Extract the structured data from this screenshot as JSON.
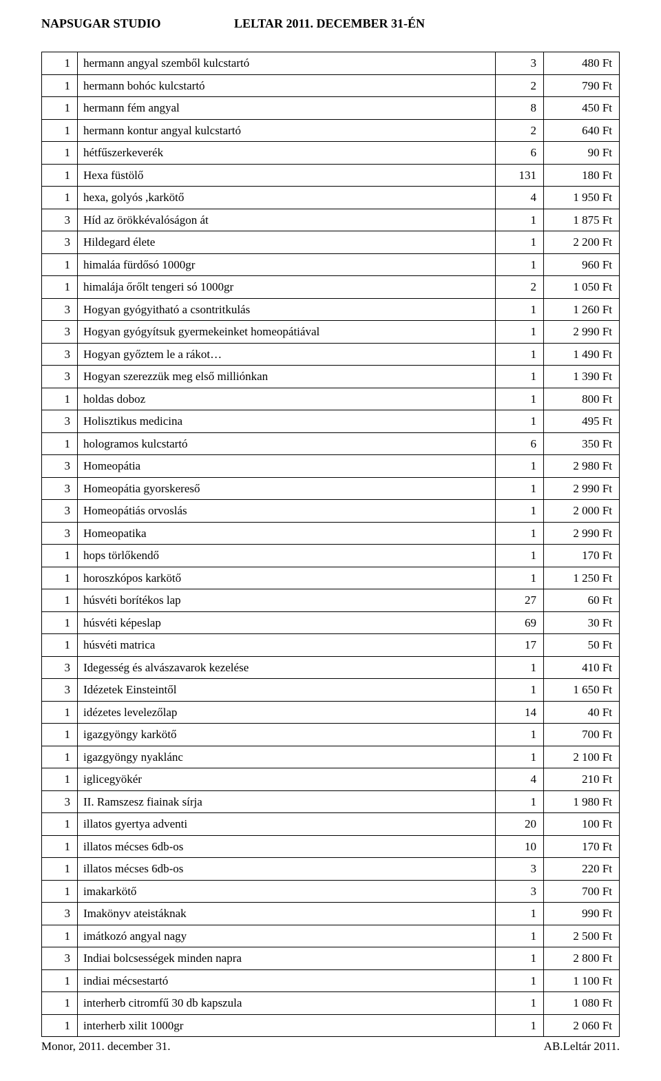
{
  "header": {
    "left": "NAPSUGAR STUDIO",
    "right": "LELTAR 2011. DECEMBER 31-ÉN"
  },
  "rows": [
    {
      "a": "1",
      "b": "hermann angyal szemből kulcstartó",
      "c": "3",
      "d": "480 Ft"
    },
    {
      "a": "1",
      "b": "hermann bohóc kulcstartó",
      "c": "2",
      "d": "790 Ft"
    },
    {
      "a": "1",
      "b": "hermann fém angyal",
      "c": "8",
      "d": "450 Ft"
    },
    {
      "a": "1",
      "b": "hermann kontur angyal kulcstartó",
      "c": "2",
      "d": "640 Ft"
    },
    {
      "a": "1",
      "b": "hétfűszerkeverék",
      "c": "6",
      "d": "90 Ft"
    },
    {
      "a": "1",
      "b": "Hexa füstölő",
      "c": "131",
      "d": "180 Ft"
    },
    {
      "a": "1",
      "b": "hexa, golyós ,karkötő",
      "c": "4",
      "d": "1 950 Ft"
    },
    {
      "a": "3",
      "b": "Híd az örökkévalóságon át",
      "c": "1",
      "d": "1 875 Ft"
    },
    {
      "a": "3",
      "b": "Hildegard élete",
      "c": "1",
      "d": "2 200 Ft"
    },
    {
      "a": "1",
      "b": "himaláa fürdősó 1000gr",
      "c": "1",
      "d": "960 Ft"
    },
    {
      "a": "1",
      "b": "himalája őrőlt tengeri só 1000gr",
      "c": "2",
      "d": "1 050 Ft"
    },
    {
      "a": "3",
      "b": "Hogyan gyógyitható a csontritkulás",
      "c": "1",
      "d": "1 260 Ft"
    },
    {
      "a": "3",
      "b": "Hogyan gyógyítsuk gyermekeinket homeopátiával",
      "c": "1",
      "d": "2 990 Ft"
    },
    {
      "a": "3",
      "b": "Hogyan győztem le a rákot…",
      "c": "1",
      "d": "1 490 Ft"
    },
    {
      "a": "3",
      "b": "Hogyan szerezzük meg első milliónkan",
      "c": "1",
      "d": "1 390 Ft"
    },
    {
      "a": "1",
      "b": "holdas doboz",
      "c": "1",
      "d": "800 Ft"
    },
    {
      "a": "3",
      "b": "Holisztikus medicina",
      "c": "1",
      "d": "495 Ft"
    },
    {
      "a": "1",
      "b": "hologramos kulcstartó",
      "c": "6",
      "d": "350 Ft"
    },
    {
      "a": "3",
      "b": "Homeopátia",
      "c": "1",
      "d": "2 980 Ft"
    },
    {
      "a": "3",
      "b": "Homeopátia gyorskereső",
      "c": "1",
      "d": "2 990 Ft"
    },
    {
      "a": "3",
      "b": "Homeopátiás orvoslás",
      "c": "1",
      "d": "2 000 Ft"
    },
    {
      "a": "3",
      "b": "Homeopatika",
      "c": "1",
      "d": "2 990 Ft"
    },
    {
      "a": "1",
      "b": "hops törlőkendő",
      "c": "1",
      "d": "170 Ft"
    },
    {
      "a": "1",
      "b": "horoszkópos karkötő",
      "c": "1",
      "d": "1 250 Ft"
    },
    {
      "a": "1",
      "b": "húsvéti borítékos lap",
      "c": "27",
      "d": "60 Ft"
    },
    {
      "a": "1",
      "b": "húsvéti képeslap",
      "c": "69",
      "d": "30 Ft"
    },
    {
      "a": "1",
      "b": "húsvéti matrica",
      "c": "17",
      "d": "50 Ft"
    },
    {
      "a": "3",
      "b": "Idegesség és alvászavarok kezelése",
      "c": "1",
      "d": "410 Ft"
    },
    {
      "a": "3",
      "b": "Idézetek Einsteintől",
      "c": "1",
      "d": "1 650 Ft"
    },
    {
      "a": "1",
      "b": "idézetes levelezőlap",
      "c": "14",
      "d": "40 Ft"
    },
    {
      "a": "1",
      "b": "igazgyöngy karkötő",
      "c": "1",
      "d": "700 Ft"
    },
    {
      "a": "1",
      "b": "igazgyöngy nyaklánc",
      "c": "1",
      "d": "2 100 Ft"
    },
    {
      "a": "1",
      "b": "iglicegyökér",
      "c": "4",
      "d": "210 Ft"
    },
    {
      "a": "3",
      "b": "II. Ramszesz fiainak sírja",
      "c": "1",
      "d": "1 980 Ft"
    },
    {
      "a": "1",
      "b": "illatos gyertya adventi",
      "c": "20",
      "d": "100 Ft"
    },
    {
      "a": "1",
      "b": "illatos mécses 6db-os",
      "c": "10",
      "d": "170 Ft"
    },
    {
      "a": "1",
      "b": "illatos mécses 6db-os",
      "c": "3",
      "d": "220 Ft"
    },
    {
      "a": "1",
      "b": "imakarkötő",
      "c": "3",
      "d": "700 Ft"
    },
    {
      "a": "3",
      "b": "Imakönyv ateistáknak",
      "c": "1",
      "d": "990 Ft"
    },
    {
      "a": "1",
      "b": "imátkozó angyal nagy",
      "c": "1",
      "d": "2 500 Ft"
    },
    {
      "a": "3",
      "b": "Indiai bolcsességek minden napra",
      "c": "1",
      "d": "2 800 Ft"
    },
    {
      "a": "1",
      "b": "indiai mécsestartó",
      "c": "1",
      "d": "1 100 Ft"
    },
    {
      "a": "1",
      "b": "interherb citromfű 30 db kapszula",
      "c": "1",
      "d": "1 080 Ft"
    },
    {
      "a": "1",
      "b": "interherb xilit 1000gr",
      "c": "1",
      "d": "2 060 Ft"
    }
  ],
  "footer": {
    "left": "Monor, 2011. december 31.",
    "right": "AB.Leltár 2011."
  }
}
